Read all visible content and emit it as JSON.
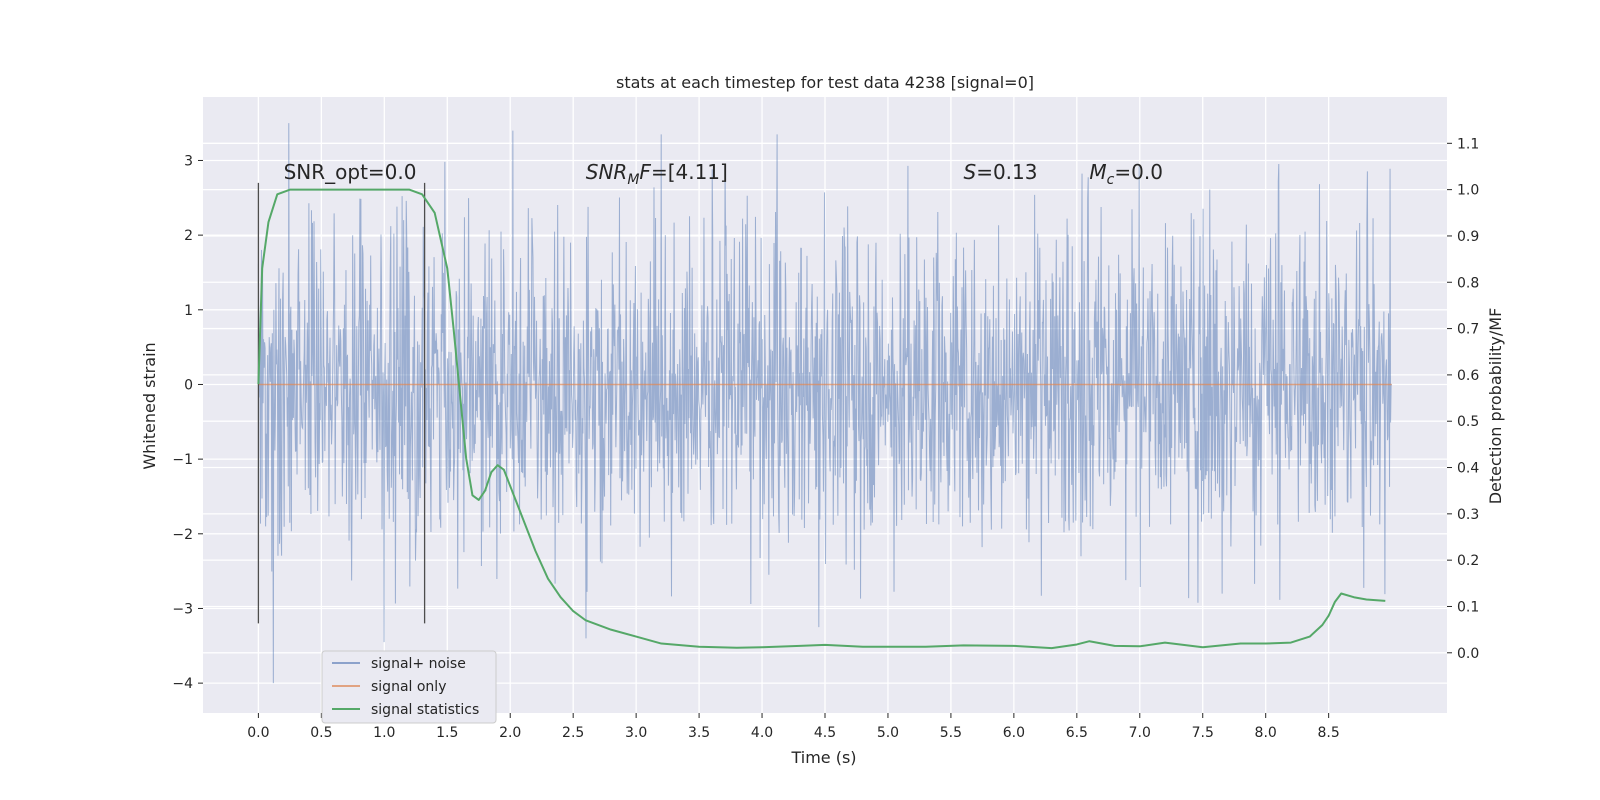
{
  "chart_data": {
    "type": "line",
    "title": "stats at each timestep for test data 4238 [signal=0]",
    "xlabel": "Time (s)",
    "ylabel_left": "Whitened strain",
    "ylabel_right": "Detection probability/MF",
    "xlim": [
      -0.44,
      9.44
    ],
    "ylim_left": [
      -4.4,
      3.85
    ],
    "ylim_right": [
      -0.13,
      1.2
    ],
    "x_ticks": [
      "0.0",
      "0.5",
      "1.0",
      "1.5",
      "2.0",
      "2.5",
      "3.0",
      "3.5",
      "4.0",
      "4.5",
      "5.0",
      "5.5",
      "6.0",
      "6.5",
      "7.0",
      "7.5",
      "8.0",
      "8.5"
    ],
    "y_left_ticks": [
      "3",
      "2",
      "1",
      "0",
      "−1",
      "−2",
      "−3",
      "−4"
    ],
    "y_right_ticks": [
      "1.1",
      "1.0",
      "0.9",
      "0.8",
      "0.7",
      "0.6",
      "0.5",
      "0.4",
      "0.3",
      "0.2",
      "0.1",
      "0.0"
    ],
    "grid": true,
    "legend_position": "lower-left",
    "series": [
      {
        "name": "signal+ noise",
        "color": "#4c72b0",
        "axis": "left",
        "x_range": [
          0.0,
          9.0
        ],
        "amplitude_envelope": [
          -2.0,
          2.5
        ],
        "notable_spikes": [
          {
            "x": 0.12,
            "y": -4.0
          },
          {
            "x": 0.24,
            "y": 3.5
          },
          {
            "x": 1.0,
            "y": -3.45
          },
          {
            "x": 2.02,
            "y": 3.4
          },
          {
            "x": 2.6,
            "y": -3.4
          },
          {
            "x": 3.2,
            "y": 3.35
          },
          {
            "x": 4.12,
            "y": 3.35
          },
          {
            "x": 4.45,
            "y": -3.25
          }
        ]
      },
      {
        "name": "signal only",
        "color": "#dd8452",
        "axis": "left",
        "x": [
          0.0,
          9.0
        ],
        "y": [
          0.0,
          0.0
        ]
      },
      {
        "name": "signal statistics",
        "color": "#55a868",
        "axis": "right",
        "x": [
          0.0,
          0.03,
          0.08,
          0.15,
          0.25,
          0.4,
          0.6,
          0.8,
          1.0,
          1.1,
          1.2,
          1.3,
          1.4,
          1.5,
          1.55,
          1.6,
          1.65,
          1.7,
          1.75,
          1.8,
          1.85,
          1.9,
          1.95,
          2.0,
          2.1,
          2.2,
          2.3,
          2.4,
          2.5,
          2.6,
          2.8,
          3.0,
          3.2,
          3.5,
          3.8,
          4.0,
          4.3,
          4.5,
          4.8,
          5.0,
          5.3,
          5.6,
          6.0,
          6.3,
          6.5,
          6.6,
          6.8,
          7.0,
          7.2,
          7.5,
          7.8,
          8.0,
          8.2,
          8.35,
          8.45,
          8.5,
          8.55,
          8.6,
          8.7,
          8.8,
          8.95
        ],
        "y": [
          0.58,
          0.83,
          0.93,
          0.99,
          1.0,
          1.0,
          1.0,
          1.0,
          1.0,
          1.0,
          1.0,
          0.99,
          0.95,
          0.83,
          0.7,
          0.56,
          0.42,
          0.34,
          0.33,
          0.35,
          0.39,
          0.405,
          0.395,
          0.36,
          0.29,
          0.22,
          0.16,
          0.12,
          0.09,
          0.07,
          0.05,
          0.035,
          0.02,
          0.013,
          0.011,
          0.012,
          0.015,
          0.017,
          0.013,
          0.013,
          0.013,
          0.016,
          0.015,
          0.01,
          0.018,
          0.025,
          0.015,
          0.014,
          0.022,
          0.012,
          0.02,
          0.02,
          0.022,
          0.035,
          0.06,
          0.08,
          0.11,
          0.128,
          0.12,
          0.115,
          0.112
        ]
      }
    ],
    "vertical_markers": [
      {
        "x": 0.0,
        "y_range": [
          -3.2,
          2.7
        ]
      },
      {
        "x": 1.32,
        "y_range": [
          -3.2,
          2.7
        ]
      }
    ],
    "annotations": [
      {
        "x": 0.2,
        "y": 2.75,
        "text": "SNR_opt=0.0",
        "kind": "plain"
      },
      {
        "x": 2.6,
        "y": 2.75,
        "text": "SNR_MF=[4.11]",
        "kind": "snr-mf"
      },
      {
        "x": 5.6,
        "y": 2.75,
        "text": "S=0.13",
        "kind": "s"
      },
      {
        "x": 6.6,
        "y": 2.75,
        "text": "M_c=0.0",
        "kind": "mc"
      }
    ]
  },
  "styles": {
    "plot_background": "#eaeaf2",
    "grid_color": "#ffffff",
    "marker_color": "#4d4d4d"
  }
}
